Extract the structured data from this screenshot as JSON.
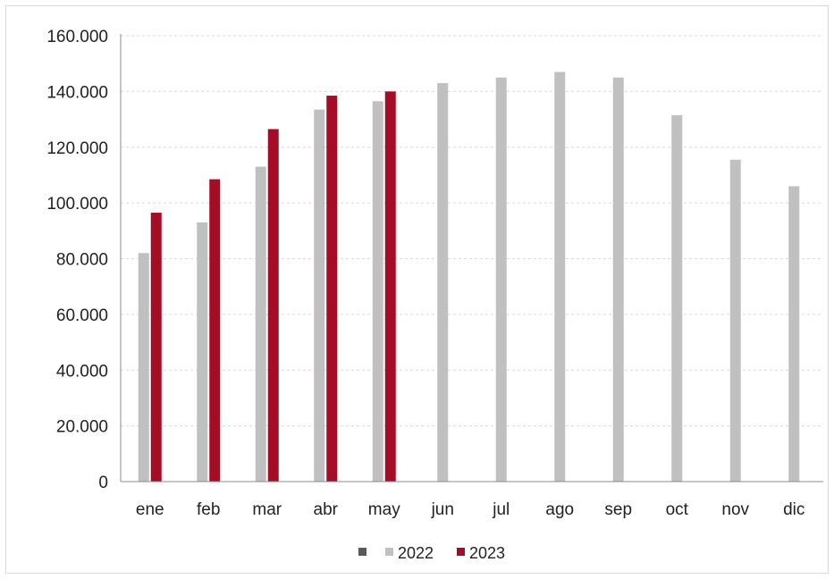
{
  "chart_data": {
    "type": "bar",
    "categories": [
      "ene",
      "feb",
      "mar",
      "abr",
      "may",
      "jun",
      "jul",
      "ago",
      "sep",
      "oct",
      "nov",
      "dic"
    ],
    "series": [
      {
        "name": "2022",
        "color": "#c0c0c0",
        "values": [
          82000,
          93000,
          113000,
          133500,
          136500,
          143000,
          145000,
          147000,
          145000,
          131500,
          115500,
          106000
        ]
      },
      {
        "name": "2023",
        "color": "#a50d26",
        "values": [
          96500,
          108500,
          126500,
          138500,
          140000,
          null,
          null,
          null,
          null,
          null,
          null,
          null
        ]
      }
    ],
    "ylim": [
      0,
      160000
    ],
    "yticks": [
      "0",
      "20.000",
      "40.000",
      "60.000",
      "80.000",
      "100.000",
      "120.000",
      "140.000",
      "160.000"
    ],
    "ytick_values": [
      0,
      20000,
      40000,
      60000,
      80000,
      100000,
      120000,
      140000,
      160000
    ],
    "grid": true,
    "legend_position": "bottom",
    "legend_extra_marker_color": "#595959",
    "title": "",
    "xlabel": "",
    "ylabel": ""
  }
}
